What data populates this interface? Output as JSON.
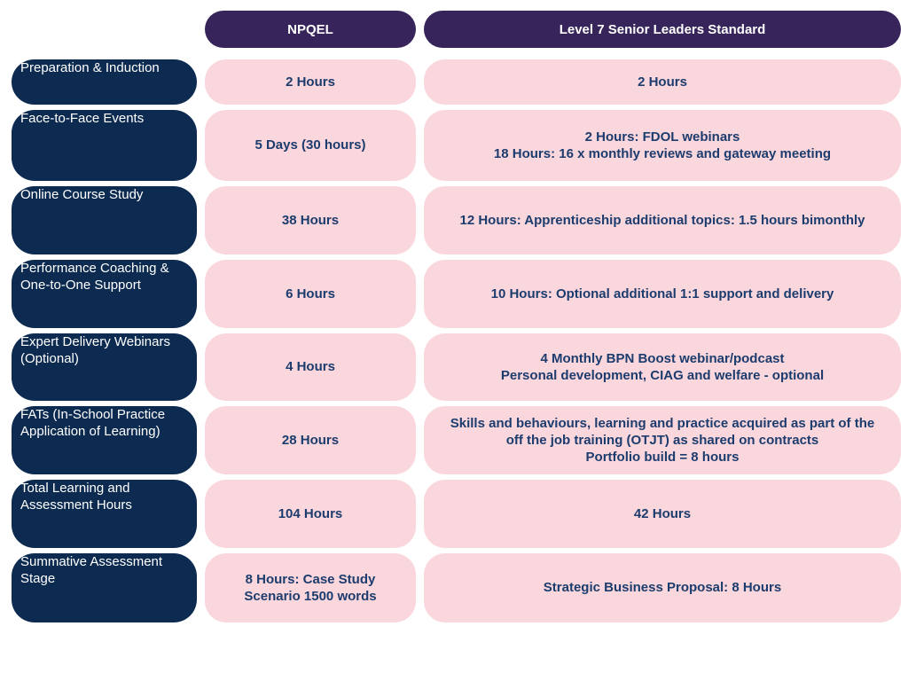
{
  "colors": {
    "header_bg": "#36245A",
    "header_text": "#FFFFFF",
    "row_label_bg": "#0D2B50",
    "cell_bg": "#FAD7DD",
    "cell_text": "#1D3C6E"
  },
  "chart_data": {
    "type": "table",
    "title": "",
    "columns": [
      "",
      "NPQEL",
      "Level 7 Senior Leaders Standard"
    ],
    "rows": [
      {
        "label": "Preparation & Induction",
        "npqel": "2 Hours",
        "level7": "2 Hours"
      },
      {
        "label": "Face-to-Face Events",
        "npqel": "5 Days (30 hours)",
        "level7": "2 Hours: FDOL webinars\n18 Hours: 16 x monthly reviews and gateway meeting"
      },
      {
        "label": "Online Course Study",
        "npqel": "38 Hours",
        "level7": "12 Hours: Apprenticeship additional topics: 1.5 hours bimonthly"
      },
      {
        "label": "Performance Coaching &\nOne-to-One Support",
        "npqel": "6 Hours",
        "level7": "10 Hours: Optional additional 1:1 support and delivery"
      },
      {
        "label": "Expert Delivery\nWebinars (Optional)",
        "npqel": "4 Hours",
        "level7": "4 Monthly BPN Boost webinar/podcast\nPersonal development, CIAG and welfare - optional"
      },
      {
        "label": "FATs (In-School Practice\nApplication of Learning)",
        "npqel": "28 Hours",
        "level7": "Skills and behaviours, learning and practice acquired as part of the\noff the job training (OTJT) as shared on contracts\nPortfolio build = 8 hours"
      },
      {
        "label": "Total Learning and\nAssessment Hours",
        "npqel": "104 Hours",
        "level7": "42 Hours"
      },
      {
        "label": "Summative Assessment\nStage",
        "npqel": "8 Hours: Case Study\nScenario 1500 words",
        "level7": "Strategic Business Proposal: 8 Hours"
      }
    ]
  }
}
